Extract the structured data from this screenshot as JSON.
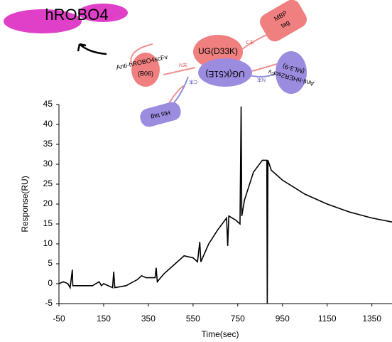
{
  "chart_data": {
    "type": "line",
    "x_label": "Time(sec)",
    "y_label": "Response(RU)",
    "x": [
      -50,
      -30,
      -10,
      0,
      10,
      12,
      50,
      100,
      130,
      140,
      150,
      190,
      195,
      200,
      250,
      300,
      320,
      340,
      380,
      385,
      390,
      420,
      470,
      510,
      550,
      570,
      580,
      585,
      620,
      660,
      700,
      705,
      710,
      740,
      760,
      765,
      768,
      780,
      820,
      860,
      880,
      882,
      885,
      900,
      950,
      1050,
      1150,
      1250,
      1350,
      1440
    ],
    "values": [
      0,
      0.5,
      0,
      -1,
      3.5,
      -0.5,
      -0.5,
      -0.5,
      0.5,
      -0.5,
      0,
      -1,
      3,
      -1,
      -0.5,
      1,
      2,
      1.5,
      1.5,
      4,
      0.5,
      2.5,
      5,
      7,
      6.5,
      5.5,
      10.5,
      5.5,
      10,
      13.5,
      16.5,
      9.5,
      17,
      16,
      15,
      44.5,
      17,
      21,
      28,
      31,
      31,
      -5,
      31,
      28.5,
      26,
      22.5,
      20,
      18,
      16.5,
      15.5
    ],
    "color": "#000000",
    "xlim": [
      -50,
      1440
    ],
    "ylim": [
      -5,
      45
    ],
    "xticks": [
      -50,
      150,
      350,
      550,
      750,
      950,
      1150,
      1350
    ],
    "yticks": [
      -5,
      0,
      5,
      10,
      15,
      20,
      25,
      30,
      35,
      40,
      45
    ]
  },
  "diagram": {
    "antigen": "hROBO4",
    "anti_robo4": "Anti-hROBO4scFv",
    "anti_robo4_clone": "(B06)",
    "ug_top": "UG(D33K)",
    "ug_bottom": "UG(K51E)",
    "mbp": "MBP",
    "mbp_tag": "tag",
    "anti_her2": "Anti-hHER2scFv",
    "anti_her2_clone": "(ML3-9)",
    "his_tag": "His tag",
    "n_term": "N末",
    "c_term": "C末"
  }
}
